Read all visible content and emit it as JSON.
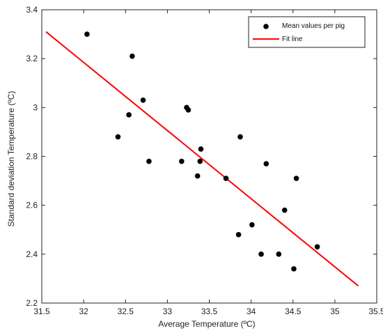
{
  "chart_data": {
    "type": "scatter",
    "xlabel": "Average Temperature (ºC)",
    "ylabel": "Standard deviation  Temperature (ºC)",
    "xlim": [
      31.5,
      35.5
    ],
    "ylim": [
      2.2,
      3.4
    ],
    "xticks": [
      "31.5",
      "32",
      "32.5",
      "33",
      "33.5",
      "34",
      "34.5",
      "35",
      "35.5"
    ],
    "yticks": [
      "2.2",
      "2.4",
      "2.6",
      "2.8",
      "3",
      "3.2",
      "3.4"
    ],
    "grid": false,
    "legend_position": "top-right",
    "series": [
      {
        "name": "Mean values per pig",
        "kind": "points",
        "color": "#000000",
        "x": [
          32.04,
          32.41,
          32.54,
          32.58,
          32.71,
          32.78,
          33.17,
          33.23,
          33.25,
          33.36,
          33.39,
          33.4,
          33.7,
          33.85,
          33.87,
          34.01,
          34.12,
          34.18,
          34.33,
          34.4,
          34.51,
          34.54,
          34.79
        ],
        "y": [
          3.3,
          2.88,
          2.97,
          3.21,
          3.03,
          2.78,
          2.78,
          3.0,
          2.99,
          2.72,
          2.78,
          2.83,
          2.71,
          2.48,
          2.88,
          2.52,
          2.4,
          2.77,
          2.4,
          2.58,
          2.34,
          2.71,
          2.43
        ]
      },
      {
        "name": "Fit line",
        "kind": "line",
        "color": "#ff0000",
        "x": [
          31.55,
          35.28
        ],
        "y": [
          3.31,
          2.27
        ]
      }
    ]
  }
}
